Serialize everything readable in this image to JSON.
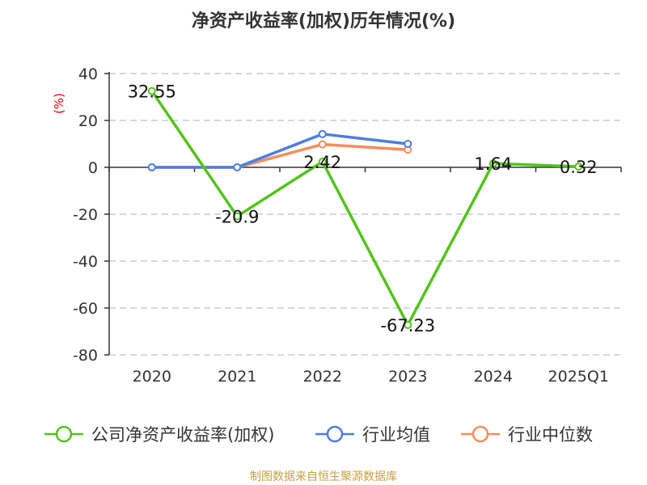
{
  "chart_data": {
    "type": "line",
    "title": "净资产收益率(加权)历年情况(%)",
    "ylabel": "(%)",
    "categories": [
      "2020",
      "2021",
      "2022",
      "2023",
      "2024",
      "2025Q1"
    ],
    "ylim": [
      -80,
      40
    ],
    "yticks": [
      40,
      20,
      0,
      -20,
      -40,
      -60,
      -80
    ],
    "grid": true,
    "legend_position": "bottom",
    "series": [
      {
        "name": "公司净资产收益率(加权)",
        "color": "#52c41a",
        "values": [
          32.55,
          -20.9,
          2.42,
          -67.23,
          1.64,
          0.32
        ],
        "labels": [
          "32.55",
          "-20.9",
          "2.42",
          "-67.23",
          "1.64",
          "0.32"
        ]
      },
      {
        "name": "行业均值",
        "color": "#4a7ee6",
        "values": [
          0,
          0,
          14.2,
          10.0,
          null,
          null
        ]
      },
      {
        "name": "行业中位数",
        "color": "#f98c5b",
        "values": [
          0,
          0,
          9.8,
          7.5,
          null,
          null
        ]
      }
    ]
  },
  "footer": "制图数据来自恒生聚源数据库"
}
